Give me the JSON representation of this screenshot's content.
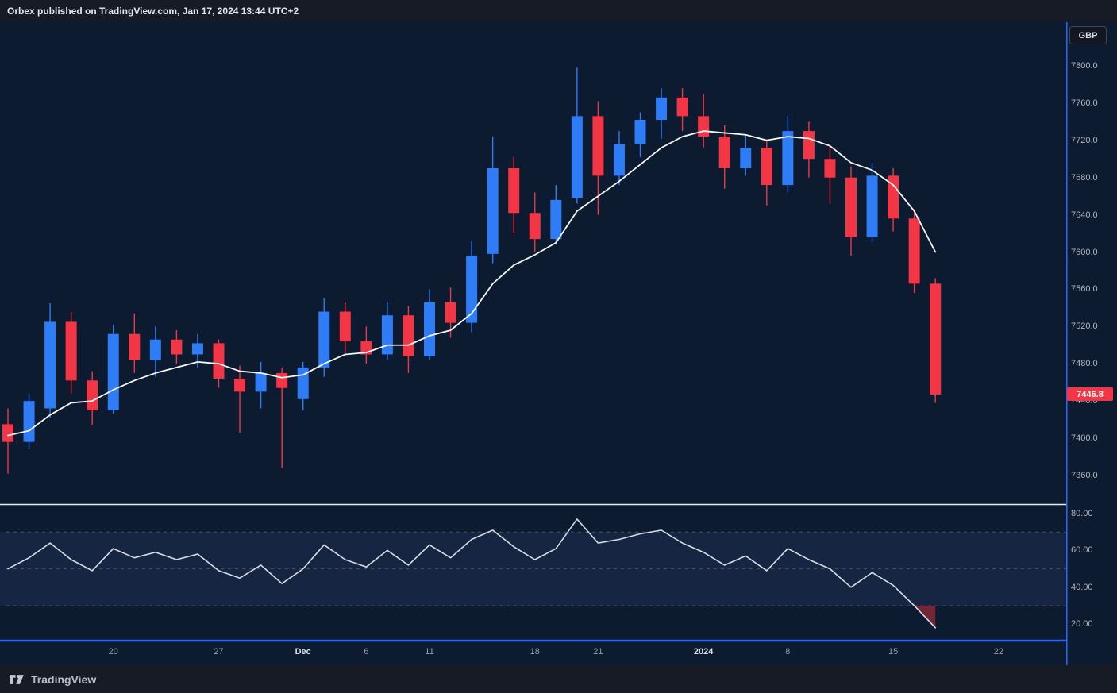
{
  "header": {
    "published_line": "Orbex published on TradingView.com, Jan 17, 2024 13:44 UTC+2"
  },
  "price_scale": {
    "unit_badge": "GBP",
    "last_price_label": "7446.8",
    "ticks": [
      7800,
      7760,
      7720,
      7680,
      7640,
      7600,
      7560,
      7520,
      7480,
      7440,
      7400,
      7360
    ]
  },
  "rsi_scale": {
    "ticks": [
      80,
      60,
      40,
      20
    ],
    "levels": [
      70,
      50,
      30
    ]
  },
  "time_axis": {
    "labels": [
      {
        "text": "20",
        "bar": 5,
        "major": false
      },
      {
        "text": "27",
        "bar": 10,
        "major": false
      },
      {
        "text": "Dec",
        "bar": 14,
        "major": true
      },
      {
        "text": "6",
        "bar": 17,
        "major": false
      },
      {
        "text": "11",
        "bar": 20,
        "major": false
      },
      {
        "text": "18",
        "bar": 25,
        "major": false
      },
      {
        "text": "21",
        "bar": 28,
        "major": false
      },
      {
        "text": "2024",
        "bar": 33,
        "major": true
      },
      {
        "text": "8",
        "bar": 37,
        "major": false
      },
      {
        "text": "15",
        "bar": 42,
        "major": false
      },
      {
        "text": "22",
        "bar": 47,
        "major": false
      }
    ]
  },
  "footer": {
    "brand": "TradingView"
  },
  "colors": {
    "up": "#2e7cf6",
    "down": "#f23645",
    "ma_line": "#f5f7fa",
    "rsi_line": "#d8dce6",
    "background": "#0d1b30",
    "panel": "#161b26",
    "axis_text": "#b2b5be",
    "accent_blue": "#2962ff",
    "separator": "#e8ecf3",
    "band_fill": "rgba(109,138,224,0.10)",
    "level_dash": "#4b5060",
    "rsi_oversold_fill": "rgba(242,54,69,0.45)",
    "last_price_bg": "#f23645"
  },
  "chart_data": [
    {
      "type": "candlestick",
      "pane": "price",
      "ylabel": "GBP",
      "ylim": [
        7330,
        7845
      ],
      "yticks": [
        7800,
        7760,
        7720,
        7680,
        7640,
        7600,
        7560,
        7520,
        7480,
        7440,
        7400,
        7360
      ],
      "last_price": 7446.8,
      "x": [
        "Nov 13",
        "Nov 14",
        "Nov 15",
        "Nov 16",
        "Nov 17",
        "Nov 20",
        "Nov 21",
        "Nov 22",
        "Nov 23",
        "Nov 24",
        "Nov 27",
        "Nov 28",
        "Nov 29",
        "Nov 30",
        "Dec 1",
        "Dec 4",
        "Dec 5",
        "Dec 6",
        "Dec 7",
        "Dec 8",
        "Dec 11",
        "Dec 12",
        "Dec 13",
        "Dec 14",
        "Dec 15",
        "Dec 18",
        "Dec 19",
        "Dec 20",
        "Dec 21",
        "Dec 22",
        "Dec 27",
        "Dec 28",
        "Dec 29",
        "Jan 2",
        "Jan 3",
        "Jan 4",
        "Jan 5",
        "Jan 8",
        "Jan 9",
        "Jan 10",
        "Jan 11",
        "Jan 12",
        "Jan 15",
        "Jan 16",
        "Jan 17"
      ],
      "series": [
        {
          "name": "daily-candles",
          "type": "candlestick",
          "ohlc": [
            [
              7415,
              7432,
              7362,
              7396
            ],
            [
              7396,
              7448,
              7388,
              7440
            ],
            [
              7432,
              7545,
              7422,
              7525
            ],
            [
              7525,
              7536,
              7448,
              7462
            ],
            [
              7462,
              7472,
              7414,
              7430
            ],
            [
              7430,
              7522,
              7426,
              7512
            ],
            [
              7512,
              7534,
              7470,
              7484
            ],
            [
              7484,
              7520,
              7466,
              7506
            ],
            [
              7506,
              7516,
              7480,
              7490
            ],
            [
              7490,
              7512,
              7476,
              7502
            ],
            [
              7502,
              7506,
              7454,
              7464
            ],
            [
              7464,
              7478,
              7406,
              7450
            ],
            [
              7450,
              7482,
              7432,
              7470
            ],
            [
              7470,
              7476,
              7368,
              7454
            ],
            [
              7442,
              7482,
              7430,
              7476
            ],
            [
              7476,
              7550,
              7466,
              7536
            ],
            [
              7536,
              7546,
              7490,
              7504
            ],
            [
              7504,
              7520,
              7480,
              7490
            ],
            [
              7490,
              7546,
              7484,
              7532
            ],
            [
              7532,
              7542,
              7470,
              7488
            ],
            [
              7488,
              7560,
              7484,
              7546
            ],
            [
              7546,
              7562,
              7508,
              7524
            ],
            [
              7524,
              7612,
              7514,
              7596
            ],
            [
              7598,
              7724,
              7588,
              7690
            ],
            [
              7690,
              7702,
              7620,
              7642
            ],
            [
              7642,
              7664,
              7600,
              7614
            ],
            [
              7614,
              7672,
              7608,
              7656
            ],
            [
              7658,
              7798,
              7652,
              7746
            ],
            [
              7746,
              7762,
              7640,
              7682
            ],
            [
              7682,
              7730,
              7672,
              7716
            ],
            [
              7716,
              7750,
              7702,
              7742
            ],
            [
              7742,
              7776,
              7722,
              7766
            ],
            [
              7766,
              7776,
              7730,
              7746
            ],
            [
              7746,
              7770,
              7712,
              7724
            ],
            [
              7724,
              7736,
              7668,
              7690
            ],
            [
              7690,
              7726,
              7682,
              7712
            ],
            [
              7712,
              7720,
              7650,
              7672
            ],
            [
              7672,
              7746,
              7664,
              7730
            ],
            [
              7730,
              7740,
              7680,
              7700
            ],
            [
              7700,
              7716,
              7652,
              7680
            ],
            [
              7680,
              7692,
              7596,
              7616
            ],
            [
              7616,
              7696,
              7610,
              7682
            ],
            [
              7682,
              7690,
              7622,
              7636
            ],
            [
              7636,
              7646,
              7556,
              7566
            ],
            [
              7566,
              7572,
              7438,
              7447
            ]
          ]
        },
        {
          "name": "moving-average",
          "type": "line",
          "values": [
            7403,
            7408,
            7425,
            7438,
            7440,
            7452,
            7462,
            7470,
            7476,
            7482,
            7480,
            7472,
            7470,
            7465,
            7468,
            7480,
            7490,
            7492,
            7500,
            7500,
            7510,
            7516,
            7534,
            7566,
            7586,
            7597,
            7610,
            7644,
            7660,
            7676,
            7694,
            7712,
            7724,
            7730,
            7728,
            7726,
            7720,
            7724,
            7722,
            7714,
            7696,
            7688,
            7672,
            7644,
            7600
          ]
        }
      ]
    },
    {
      "type": "line",
      "pane": "rsi",
      "name": "RSI",
      "ylim": [
        12,
        84
      ],
      "yticks": [
        80,
        60,
        40,
        20
      ],
      "levels": [
        70,
        50,
        30
      ],
      "band": [
        30,
        70
      ],
      "values": [
        50,
        56,
        64,
        55,
        49,
        61,
        56,
        59,
        55,
        58,
        49,
        45,
        52,
        42,
        50,
        63,
        55,
        51,
        60,
        52,
        63,
        56,
        66,
        71,
        62,
        55,
        61,
        77,
        64,
        66,
        69,
        71,
        64,
        59,
        52,
        57,
        49,
        61,
        55,
        50,
        40,
        48,
        41,
        30,
        18
      ]
    }
  ]
}
